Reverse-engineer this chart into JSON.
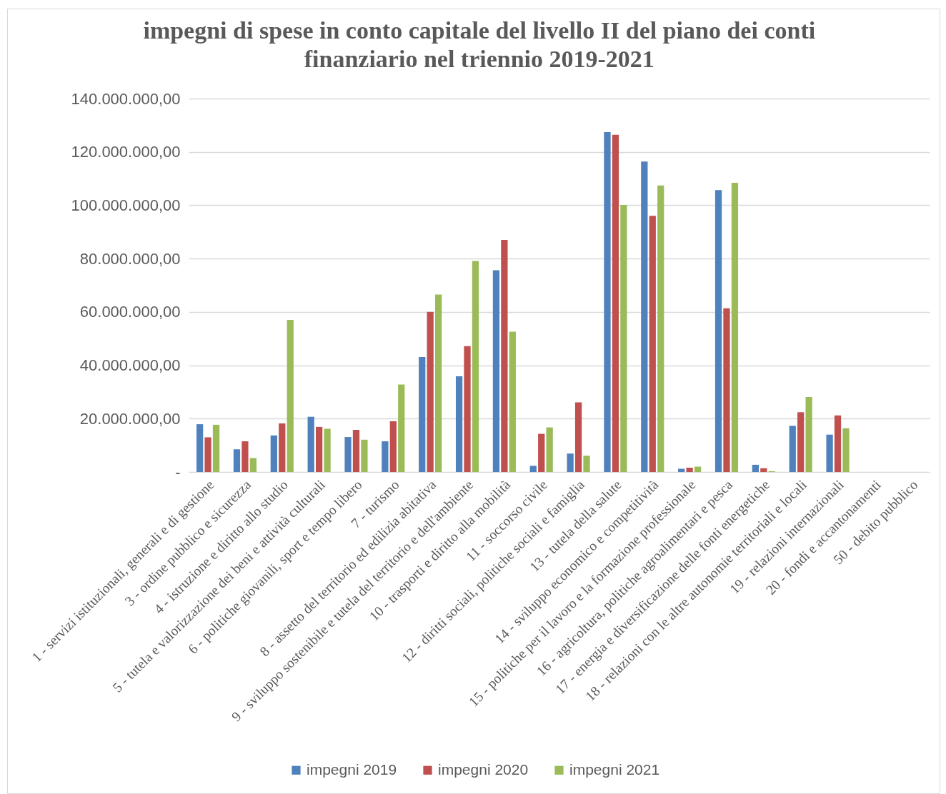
{
  "chart_data": {
    "type": "bar",
    "title": "impegni di spese in conto capitale del livello II del piano dei conti finanziario nel triennio 2019-2021",
    "categories": [
      "1 - servizi istituzionali, generali e di gestione",
      "3 - ordine pubblico e sicurezza",
      "4 - istruzione e diritto allo studio",
      "5 - tutela e valorizzazione dei beni e attività culturali",
      "6 - politiche giovanili, sport e tempo libero",
      "7 - turismo",
      "8 - assetto del territorio ed edilizia abitativa",
      "9 - sviluppo sostenibile e tutela del territorio e dell'ambiente",
      "10 - trasporti e diritto alla mobilità",
      "11 - soccorso civile",
      "12 - diritti sociali, politiche sociali e famiglia",
      "13 - tutela della salute",
      "14 - sviluppo economico e competitività",
      "15 - politiche per il lavoro e la formazione professionale",
      "16 - agricoltura, politiche agroalimentari e pesca",
      "17 - energia e diversificazione delle fonti energetiche",
      "18 - relazioni con le altre autonomie territoriali e locali",
      "19 - relazioni internazionali",
      "20 - fondi e accantonamenti",
      "50 - debito pubblico"
    ],
    "series": [
      {
        "name": "impegni 2019",
        "color": "#4f81bd",
        "values": [
          17900000,
          8500000,
          13700000,
          20700000,
          13100000,
          11500000,
          43100000,
          35900000,
          75600000,
          2300000,
          6900000,
          127400000,
          116400000,
          1200000,
          105700000,
          2700000,
          17300000,
          14000000,
          null,
          null
        ]
      },
      {
        "name": "impegni 2020",
        "color": "#c0504d",
        "values": [
          13000000,
          11500000,
          18200000,
          16900000,
          15800000,
          19000000,
          60000000,
          47200000,
          87000000,
          14300000,
          26100000,
          126400000,
          96000000,
          1600000,
          61400000,
          1400000,
          22400000,
          21200000,
          null,
          null
        ]
      },
      {
        "name": "impegni 2021",
        "color": "#9bbb59",
        "values": [
          17700000,
          5200000,
          57000000,
          16200000,
          12100000,
          32800000,
          66500000,
          79100000,
          52600000,
          16700000,
          6100000,
          100100000,
          107400000,
          2000000,
          108400000,
          300000,
          28100000,
          16400000,
          null,
          null
        ]
      }
    ],
    "ylim": [
      0,
      140000000
    ],
    "yticks": [
      {
        "value": 0,
        "label": "-"
      },
      {
        "value": 20000000,
        "label": "20.000.000,00"
      },
      {
        "value": 40000000,
        "label": "40.000.000,00"
      },
      {
        "value": 60000000,
        "label": "60.000.000,00"
      },
      {
        "value": 80000000,
        "label": "80.000.000,00"
      },
      {
        "value": 100000000,
        "label": "100.000.000,00"
      },
      {
        "value": 120000000,
        "label": "120.000.000,00"
      },
      {
        "value": 140000000,
        "label": "140.000.000,00"
      }
    ],
    "grid": "y",
    "legend": "bottom"
  }
}
